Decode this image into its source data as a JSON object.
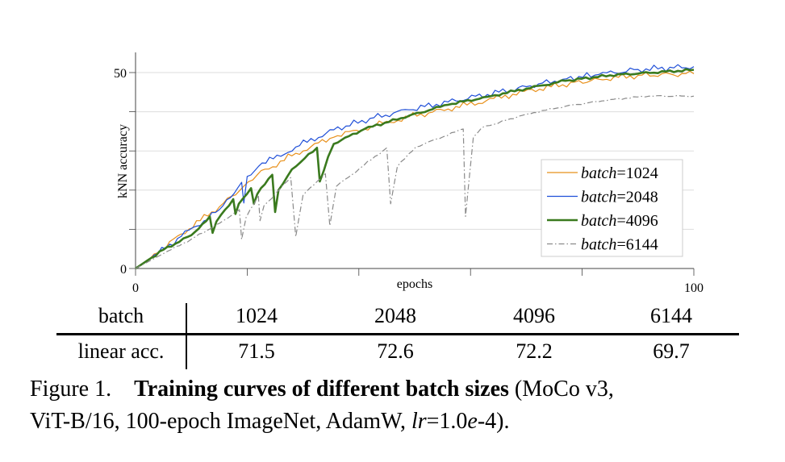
{
  "chart_data": {
    "type": "line",
    "xlabel": "epochs",
    "ylabel": "kNN accuracy",
    "xlim": [
      0,
      100
    ],
    "ylim": [
      0,
      55
    ],
    "x_tick_labels": [
      "0",
      "100"
    ],
    "y_tick_labels": [
      "0",
      "50"
    ],
    "grid": "horizontal",
    "legend_placement": "lower-right",
    "series": [
      {
        "name": "batch=1024",
        "color": "#e8901a",
        "style": "solid-thin",
        "points": [
          [
            0,
            0
          ],
          [
            4,
            4
          ],
          [
            8.2,
            8.8
          ],
          [
            15,
            15.7
          ],
          [
            19.4,
            21
          ],
          [
            21.8,
            23.9
          ],
          [
            28.7,
            29.4
          ],
          [
            35.5,
            33.5
          ],
          [
            42.3,
            36.3
          ],
          [
            49,
            38.7
          ],
          [
            56,
            40.7
          ],
          [
            62.8,
            42.8
          ],
          [
            69.6,
            45.2
          ],
          [
            76.5,
            46.9
          ],
          [
            83,
            48.3
          ],
          [
            90,
            49.3
          ],
          [
            100,
            49.7
          ]
        ]
      },
      {
        "name": "batch=2048",
        "color": "#1f4fd8",
        "style": "solid-thin",
        "points": [
          [
            0,
            0
          ],
          [
            4,
            3.8
          ],
          [
            8.2,
            8.2
          ],
          [
            15,
            15
          ],
          [
            19,
            22
          ],
          [
            19.4,
            16.7
          ],
          [
            20,
            23.5
          ],
          [
            22,
            26
          ],
          [
            28.7,
            31
          ],
          [
            35.5,
            35.4
          ],
          [
            42,
            38.3
          ],
          [
            49,
            40.5
          ],
          [
            56,
            42.5
          ],
          [
            63,
            44.4
          ],
          [
            70,
            46.4
          ],
          [
            76.5,
            48.3
          ],
          [
            83,
            49.5
          ],
          [
            90,
            50.8
          ],
          [
            100,
            51.5
          ]
        ]
      },
      {
        "name": "batch=4096",
        "color": "#3a7a1e",
        "style": "solid-thick",
        "points": [
          [
            0,
            0
          ],
          [
            5,
            4.8
          ],
          [
            10,
            8.5
          ],
          [
            13.3,
            13.3
          ],
          [
            13.8,
            9.1
          ],
          [
            14.5,
            12
          ],
          [
            17.5,
            17.7
          ],
          [
            17.9,
            13.9
          ],
          [
            18.5,
            16.5
          ],
          [
            20.7,
            20.5
          ],
          [
            21.2,
            16.5
          ],
          [
            21.8,
            19
          ],
          [
            24.5,
            23.9
          ],
          [
            25,
            14.4
          ],
          [
            25.6,
            20
          ],
          [
            28,
            25.3
          ],
          [
            32.5,
            30.8
          ],
          [
            33,
            22.2
          ],
          [
            34.5,
            28.5
          ],
          [
            35.5,
            31.8
          ],
          [
            41,
            35.6
          ],
          [
            49,
            39
          ],
          [
            56,
            41.8
          ],
          [
            63,
            43.8
          ],
          [
            70,
            45.9
          ],
          [
            77,
            47.9
          ],
          [
            85,
            49.3
          ],
          [
            100,
            50.7
          ]
        ]
      },
      {
        "name": "batch=6144",
        "color": "#8a8a8a",
        "style": "dash-dot",
        "points": [
          [
            0,
            0
          ],
          [
            5,
            3.8
          ],
          [
            10,
            7.5
          ],
          [
            15,
            11.5
          ],
          [
            18.6,
            15
          ],
          [
            19,
            7.4
          ],
          [
            19.8,
            13
          ],
          [
            22,
            18.7
          ],
          [
            22.3,
            12.2
          ],
          [
            23,
            16
          ],
          [
            27.8,
            23.2
          ],
          [
            28.7,
            8.1
          ],
          [
            30,
            18.7
          ],
          [
            34,
            24.2
          ],
          [
            34.8,
            10.9
          ],
          [
            36,
            21
          ],
          [
            45,
            30.8
          ],
          [
            45.7,
            16.5
          ],
          [
            46.9,
            26
          ],
          [
            50.2,
            31
          ],
          [
            58.7,
            35.6
          ],
          [
            59.1,
            13.3
          ],
          [
            60.5,
            33.5
          ],
          [
            62,
            35.9
          ],
          [
            70,
            39.4
          ],
          [
            77,
            41.4
          ],
          [
            85,
            43.1
          ],
          [
            92,
            44
          ],
          [
            100,
            44
          ]
        ]
      }
    ]
  },
  "table": {
    "header": [
      "batch",
      "1024",
      "2048",
      "4096",
      "6144"
    ],
    "row": [
      "linear acc.",
      "71.5",
      "72.6",
      "72.2",
      "69.7"
    ]
  },
  "caption": {
    "label": "Figure 1.",
    "title": "Training curves of different batch sizes",
    "line1_rest": " (MoCo v3,",
    "line2_a": "ViT-B/16, 100-epoch ImageNet, AdamW, ",
    "lr": "lr",
    "eq": "=1.0",
    "e": "e",
    "tail": "-4)."
  }
}
